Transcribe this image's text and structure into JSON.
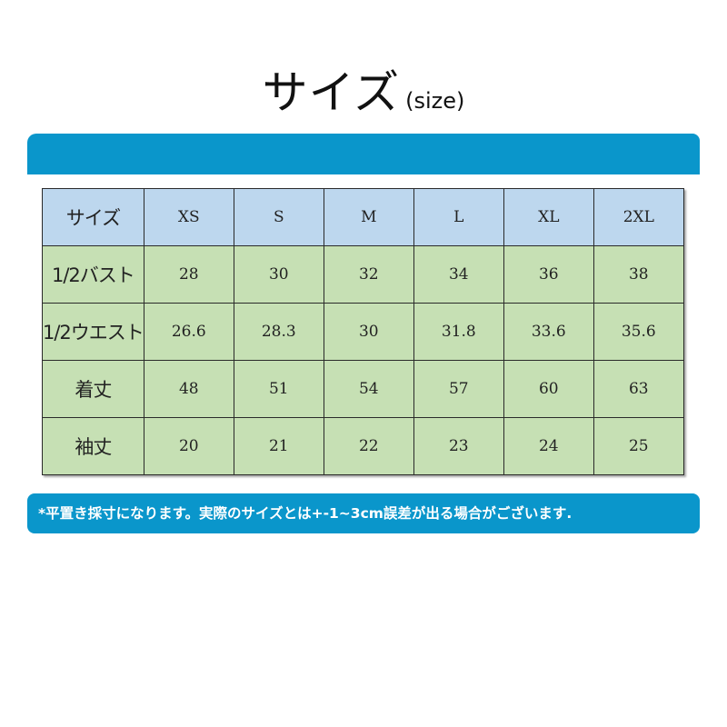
{
  "title": {
    "main": "サイズ",
    "sub": "(size)"
  },
  "table": {
    "header": [
      "サイズ",
      "XS",
      "S",
      "M",
      "L",
      "XL",
      "2XL"
    ],
    "rows": [
      [
        "1/2バスト",
        "28",
        "30",
        "32",
        "34",
        "36",
        "38"
      ],
      [
        "1/2ウエスト",
        "26.6",
        "28.3",
        "30",
        "31.8",
        "33.6",
        "35.6"
      ],
      [
        "着丈",
        "48",
        "51",
        "54",
        "57",
        "60",
        "63"
      ],
      [
        "袖丈",
        "20",
        "21",
        "22",
        "23",
        "24",
        "25"
      ]
    ]
  },
  "note": "*平置き採寸になります。実際のサイズとは+-1~3cm誤差が出る場合がございます."
}
